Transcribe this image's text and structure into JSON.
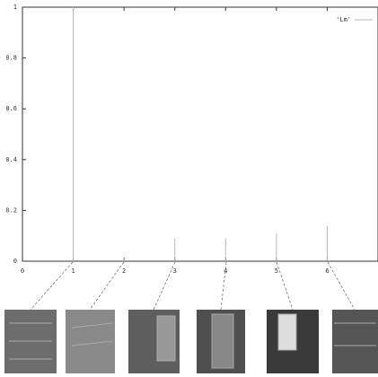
{
  "chart_data": {
    "type": "impulse",
    "x": [
      1,
      2,
      3,
      4,
      5,
      6
    ],
    "series": [
      {
        "name": "'Lm'",
        "color": "#b8b8b8",
        "values": [
          1,
          0.01,
          0.09,
          0.09,
          0.11,
          0.14
        ]
      }
    ],
    "xlim": [
      0,
      7
    ],
    "xticks": [
      0,
      1,
      2,
      3,
      4,
      5,
      6
    ],
    "ylim": [
      0,
      1
    ],
    "yticks": [
      0,
      0.2,
      0.4,
      0.6,
      0.8,
      1
    ],
    "legend": "top-right"
  }
}
